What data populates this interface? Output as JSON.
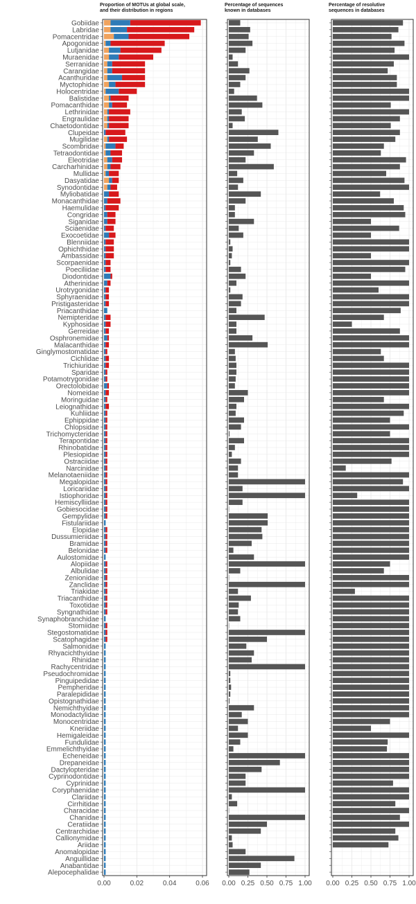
{
  "chart_data": [
    {
      "type": "bar",
      "stacked": true,
      "orientation": "horizontal",
      "title_lines": [
        "Proportion of MOTUs at global scale,",
        "and their distribution in regions"
      ],
      "xlim": [
        0,
        0.06
      ],
      "x_ticks": [
        0,
        0.02,
        0.04,
        0.06
      ],
      "x_tick_labels": [
        "0.00",
        "0.02",
        "0.04",
        "0.06"
      ],
      "grid": true,
      "series": [
        {
          "color": "#F0A35E",
          "values": [
            0.004,
            0.004,
            0.006,
            0.001,
            0.003,
            0.003,
            0.002,
            0.002,
            0.002,
            0.003,
            0.001,
            0.003,
            0.003,
            0.002,
            0.002,
            0.002,
            0,
            0.002,
            0.001,
            0.001,
            0.002,
            0.002,
            0.001,
            0.003,
            0.002,
            0,
            0,
            0,
            0,
            0,
            0,
            0,
            0,
            0,
            0,
            0,
            0,
            0,
            0,
            0,
            0,
            0,
            0,
            0,
            0,
            0,
            0,
            0,
            0,
            0,
            0,
            0,
            0,
            0,
            0,
            0,
            0,
            0,
            0,
            0,
            0,
            0,
            0,
            0,
            0,
            0,
            0,
            0,
            0,
            0,
            0,
            0,
            0,
            0,
            0,
            0,
            0,
            0,
            0,
            0,
            0,
            0,
            0,
            0,
            0,
            0,
            0,
            0,
            0,
            0,
            0,
            0,
            0,
            0,
            0,
            0,
            0,
            0,
            0,
            0,
            0,
            0,
            0,
            0,
            0,
            0,
            0,
            0,
            0,
            0,
            0,
            0,
            0,
            0,
            0,
            0,
            0,
            0,
            0,
            0,
            0,
            0,
            0,
            0,
            0,
            0
          ]
        },
        {
          "color": "#2E7BB7",
          "values": [
            0.012,
            0.01,
            0.009,
            0.003,
            0.007,
            0.006,
            0.003,
            0.003,
            0.009,
            0.004,
            0.008,
            0.001,
            0.002,
            0.001,
            0.001,
            0.001,
            0.001,
            0.001,
            0.006,
            0.003,
            0.003,
            0.002,
            0.002,
            0.002,
            0.002,
            0.003,
            0.002,
            0.001,
            0.002,
            0.002,
            0.001,
            0.003,
            0.001,
            0.001,
            0.001,
            0.001,
            0.001,
            0.004,
            0.002,
            0.001,
            0.001,
            0.001,
            0.002,
            0.001,
            0.001,
            0.001,
            0.002,
            0.001,
            0.001,
            0.001,
            0.001,
            0.001,
            0.001,
            0.002,
            0.001,
            0.001,
            0.001,
            0.001,
            0.001,
            0.001,
            0.001,
            0.001,
            0.001,
            0.001,
            0.001,
            0.001,
            0.001,
            0.001,
            0.001,
            0.001,
            0.001,
            0.001,
            0.001,
            0.001,
            0.001,
            0.001,
            0.001,
            0.001,
            0.001,
            0.001,
            0.001,
            0.001,
            0.001,
            0.001,
            0.001,
            0.001,
            0.001,
            0.001,
            0.001,
            0.001,
            0.001,
            0.001,
            0.001,
            0.001,
            0.001,
            0.001,
            0.001,
            0.001,
            0.001,
            0.001,
            0.001,
            0.001,
            0.001,
            0.001,
            0.001,
            0.001,
            0.001,
            0.001,
            0.001,
            0.001,
            0.001,
            0.001,
            0.001,
            0.001,
            0.001,
            0.001,
            0.001,
            0.001,
            0.001,
            0.001,
            0.001,
            0.001,
            0.001,
            0.001,
            0.001,
            0.001,
            0.001
          ]
        },
        {
          "color": "#D7191C",
          "values": [
            0.043,
            0.041,
            0.037,
            0.033,
            0.025,
            0.021,
            0.02,
            0.02,
            0.014,
            0.018,
            0.011,
            0.011,
            0.009,
            0.013,
            0.012,
            0.012,
            0.012,
            0.011,
            0.005,
            0.007,
            0.006,
            0.006,
            0.006,
            0.004,
            0.004,
            0.006,
            0.008,
            0.008,
            0.005,
            0.005,
            0.005,
            0.004,
            0.005,
            0.005,
            0.005,
            0.003,
            0.003,
            0.001,
            0.002,
            0.002,
            0.002,
            0.002,
            0,
            0.003,
            0.003,
            0.002,
            0.001,
            0.002,
            0.001,
            0.002,
            0.002,
            0.001,
            0.001,
            0.001,
            0.002,
            0.001,
            0.002,
            0.001,
            0.001,
            0.001,
            0.001,
            0.001,
            0.001,
            0.001,
            0.001,
            0.001,
            0.001,
            0.001,
            0.001,
            0.001,
            0.001,
            0.001,
            0.001,
            0,
            0.001,
            0.001,
            0.001,
            0.001,
            0,
            0.001,
            0.001,
            0.001,
            0.001,
            0.001,
            0.001,
            0.001,
            0.001,
            0,
            0.001,
            0.001,
            0.001,
            0,
            0,
            0,
            0,
            0,
            0,
            0,
            0,
            0,
            0,
            0,
            0,
            0,
            0,
            0,
            0,
            0,
            0,
            0,
            0,
            0,
            0,
            0,
            0,
            0,
            0,
            0,
            0,
            0,
            0,
            0,
            0,
            0,
            0,
            0,
            0,
            0,
            0,
            0,
            0,
            0
          ]
        }
      ]
    },
    {
      "type": "bar",
      "orientation": "horizontal",
      "title_lines": [
        "Percentage of sequences",
        "known in databases"
      ],
      "xlim": [
        0,
        1.0
      ],
      "x_ticks": [
        0,
        0.25,
        0.5,
        0.75,
        1.0
      ],
      "x_tick_labels": [
        "0.00",
        "0.25",
        "0.50",
        "0.75",
        "1.00"
      ],
      "grid": true,
      "bar_color": "#555555",
      "values": [
        0.15,
        0.28,
        0.26,
        0.31,
        0.22,
        0.05,
        0.12,
        0.27,
        0.22,
        0.15,
        0.07,
        0.37,
        0.44,
        0.17,
        0.21,
        0.05,
        0.65,
        0.38,
        0.55,
        0.33,
        0.22,
        0.59,
        0.11,
        0.19,
        0.12,
        0.42,
        0.22,
        0.08,
        0.08,
        0.33,
        0.13,
        0.19,
        0.02,
        0.05,
        0.04,
        0.02,
        0.16,
        0.22,
        0.1,
        0.02,
        0.18,
        0.16,
        0.1,
        0.47,
        0.1,
        0.1,
        0.31,
        0.51,
        0.08,
        0.09,
        0.1,
        0.1,
        0.09,
        0.08,
        0.25,
        0.2,
        0.1,
        0.09,
        0.2,
        0.16,
        0.01,
        0.2,
        0.08,
        0.04,
        0.16,
        0.12,
        0.12,
        1.0,
        0.18,
        1.0,
        0.18,
        0.0,
        0.51,
        0.51,
        0.43,
        0.44,
        0.3,
        0.06,
        0.33,
        1.0,
        0.15,
        0.0,
        1.0,
        0.12,
        0.29,
        0.13,
        0.12,
        0.15,
        0.0,
        1.0,
        0.5,
        0.23,
        0.33,
        0.3,
        1.0,
        0.02,
        0.02,
        0.03,
        0.02,
        0.01,
        0.33,
        0.17,
        0.25,
        0.12,
        0.25,
        0.15,
        0.06,
        1.0,
        0.67,
        0.43,
        0.22,
        0.22,
        1.0,
        0.04,
        0.11,
        0.0,
        1.0,
        0.5,
        0.42,
        0.04,
        0.05,
        0.22,
        0.86,
        0.42,
        0.27
      ]
    },
    {
      "type": "bar",
      "orientation": "horizontal",
      "title_lines": [
        "Percentage of resolutive",
        "sequences in databases"
      ],
      "xlim": [
        0,
        1.0
      ],
      "x_ticks": [
        0,
        0.25,
        0.5,
        0.75,
        1.0
      ],
      "x_tick_labels": [
        "0.00",
        "0.25",
        "0.50",
        "0.75",
        "1.00"
      ],
      "grid": true,
      "bar_color": "#555555",
      "values": [
        0.92,
        0.86,
        0.77,
        0.94,
        0.81,
        1.0,
        0.8,
        0.72,
        0.84,
        0.84,
        1.0,
        1.0,
        0.76,
        1.0,
        0.88,
        0.76,
        0.88,
        0.82,
        0.67,
        0.63,
        0.96,
        0.88,
        0.7,
        0.94,
        1.0,
        0.62,
        0.8,
        0.93,
        0.95,
        0.5,
        0.87,
        0.5,
        1.0,
        1.0,
        0.5,
        1.0,
        0.95,
        0.5,
        1.0,
        0.6,
        1.0,
        1.0,
        0.89,
        0.67,
        0.25,
        0.88,
        1.0,
        1.0,
        0.63,
        0.67,
        1.0,
        1.0,
        1.0,
        1.0,
        1.0,
        0.67,
        1.0,
        0.93,
        0.75,
        1.0,
        0.75,
        1.0,
        1.0,
        1.0,
        0.77,
        0.17,
        1.0,
        0.92,
        1.0,
        0.32,
        1.0,
        1.0,
        1.0,
        1.0,
        1.0,
        1.0,
        1.0,
        1.0,
        1.0,
        0.75,
        0.67,
        1.0,
        1.0,
        0.29,
        1.0,
        1.0,
        1.0,
        1.0,
        1.0,
        1.0,
        1.0,
        1.0,
        1.0,
        1.0,
        1.0,
        1.0,
        1.0,
        1.0,
        1.0,
        1.0,
        1.0,
        1.0,
        0.75,
        0.5,
        1.0,
        0.72,
        0.71,
        1.0,
        1.0,
        1.0,
        1.0,
        0.79,
        1.0,
        1.0,
        0.82,
        1.0,
        0.88,
        1.0,
        0.82,
        0.86,
        0.73
      ]
    }
  ],
  "families": [
    "Gobiidae",
    "Labridae",
    "Pomacentridae",
    "Apogonidae",
    "Lutjanidae",
    "Muraenidae",
    "Serranidae",
    "Carangidae",
    "Acanthuridae",
    "Myctophidae",
    "Holocentridae",
    "Balistidae",
    "Pomacanthidae",
    "Lethrinidae",
    "Engraulidae",
    "Chaetodontidae",
    "Clupeidae",
    "Mugilidae",
    "Scombridae",
    "Tetraodontidae",
    "Eleotridae",
    "Carcharhinidae",
    "Mullidae",
    "Dasyatidae",
    "Synodontidae",
    "Myliobatidae",
    "Monacanthidae",
    "Haemulidae",
    "Congridae",
    "Siganidae",
    "Sciaenidae",
    "Exocoetidae",
    "Blenniidae",
    "Ophichthidae",
    "Ambassidae",
    "Scorpaenidae",
    "Poeciliidae",
    "Diodontidae",
    "Atherinidae",
    "Urotrygonidae",
    "Sphyraenidae",
    "Pristigasteridae",
    "Priacanthidae",
    "Nemipteridae",
    "Kyphosidae",
    "Gerreidae",
    "Osphronemidae",
    "Malacanthidae",
    "Ginglymostomatidae",
    "Cichlidae",
    "Trichiuridae",
    "Sparidae",
    "Potamotrygonidae",
    "Orectolobidae",
    "Nomeidae",
    "Moringuidae",
    "Leiognathidae",
    "Kuhliidae",
    "Ephippidae",
    "Chlopsidae",
    "Trichomycteridae",
    "Terapontidae",
    "Rhinobatidae",
    "Plesiopidae",
    "Ostraciidae",
    "Narcinidae",
    "Melanotaeniidae",
    "Megalopidae",
    "Loricariidae",
    "Istiophoridae",
    "Hemiscylliidae",
    "Gobiesocidae",
    "Gempylidae",
    "Fistulariidae",
    "Elopidae",
    "Dussumieriidae",
    "Bramidae",
    "Belonidae",
    "Aulostomidae",
    "Alopiidae",
    "Albulidae",
    "Zenionidae",
    "Zanclidae",
    "Triakidae",
    "Triacanthidae",
    "Toxotidae",
    "Syngnathidae",
    "Synaphobranchidae",
    "Stomiidae",
    "Stegostomatidae",
    "Scatophagidae",
    "Salmonidae",
    "Rhyacichthyidae",
    "Rhinidae",
    "Rachycentridae",
    "Pseudochromidae",
    "Pinguipedidae",
    "Pempheridae",
    "Paralepididae",
    "Opistognathidae",
    "Nemichthyidae",
    "Monodactylidae",
    "Monocentridae",
    "Kneriidae",
    "Hemigaleidae",
    "Fundulidae",
    "Emmelichthyidae",
    "Echeneidae",
    "Drepaneidae",
    "Dactylopteridae",
    "Cyprinodontidae",
    "Cyprinidae",
    "Coryphaenidae",
    "Clariidae",
    "Cirrhitidae",
    "Characidae",
    "Chanidae",
    "Ceratiidae",
    "Centrarchidae",
    "Callionymidae",
    "Ariidae",
    "Anomalopidae",
    "Anguillidae",
    "Anabantidae",
    "Alepocephalidae"
  ]
}
